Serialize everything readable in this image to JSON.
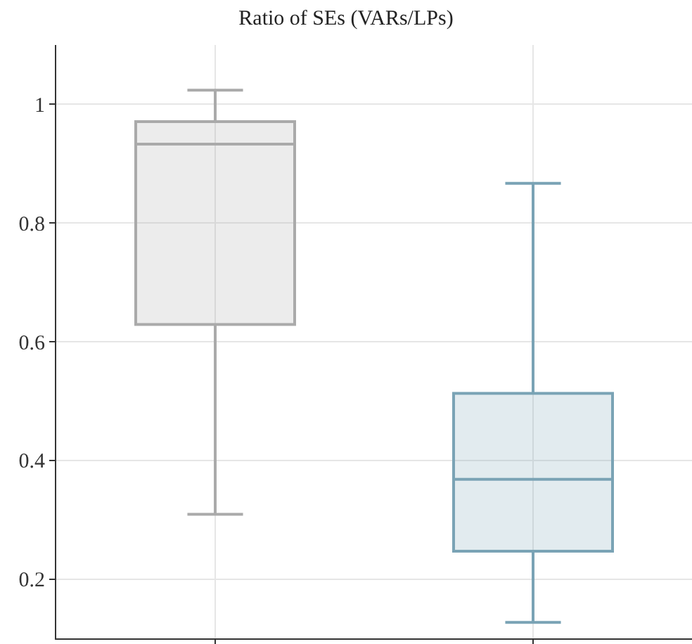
{
  "chart_data": {
    "type": "box",
    "title": "Ratio of SEs (VARs/LPs)",
    "categories": [
      null,
      null
    ],
    "boxes": [
      {
        "low": 0.309,
        "q1": 0.629,
        "median": 0.933,
        "q3": 0.971,
        "high": 1.024
      },
      {
        "low": 0.127,
        "q1": 0.247,
        "median": 0.368,
        "q3": 0.513,
        "high": 0.867
      }
    ],
    "colors": [
      "#aaaaaa",
      "#7aa3b5"
    ],
    "ylim": [
      0.1,
      1.1
    ],
    "yticks": [
      0.2,
      0.4,
      0.6,
      0.8,
      1
    ],
    "grid": true,
    "legend": false
  }
}
